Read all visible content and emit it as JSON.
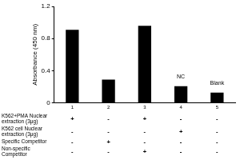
{
  "chart_data": {
    "type": "bar",
    "y_label": "Absorbance (450 nm)",
    "categories": [
      "1",
      "2",
      "3",
      "4",
      "5"
    ],
    "values": [
      0.91,
      0.29,
      0.96,
      0.21,
      0.13
    ],
    "color": "#000000",
    "ylim": [
      0,
      1.2
    ],
    "yticks": [
      0,
      0.4,
      0.8,
      1.2
    ],
    "grid": false,
    "annotations": [
      {
        "category": "4",
        "text": "NC"
      },
      {
        "category": "5",
        "text": "Blank"
      }
    ]
  },
  "conditions": [
    {
      "label": "K562+PMA Nuclear extraction (3μg)",
      "marks": [
        "+",
        "-",
        "+",
        "-",
        "-"
      ]
    },
    {
      "label": "K562 cell Nuclear extraction (3μg)",
      "marks": [
        "-",
        "-",
        "-",
        "+",
        "-"
      ]
    },
    {
      "label": "Specific Competitor",
      "marks": [
        "-",
        "+",
        "-",
        "-",
        "-"
      ]
    },
    {
      "label": "Non-specific Competitor",
      "marks": [
        "-",
        "-",
        "+",
        "-",
        "-"
      ]
    }
  ]
}
